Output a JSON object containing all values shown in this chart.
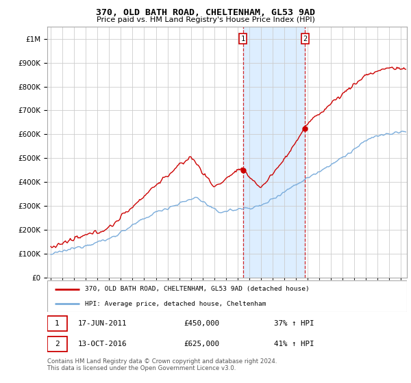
{
  "title": "370, OLD BATH ROAD, CHELTENHAM, GL53 9AD",
  "subtitle": "Price paid vs. HM Land Registry's House Price Index (HPI)",
  "legend_line1": "370, OLD BATH ROAD, CHELTENHAM, GL53 9AD (detached house)",
  "legend_line2": "HPI: Average price, detached house, Cheltenham",
  "annotation1_label": "1",
  "annotation1_date": "17-JUN-2011",
  "annotation1_price": "£450,000",
  "annotation1_hpi": "37% ↑ HPI",
  "annotation2_label": "2",
  "annotation2_date": "13-OCT-2016",
  "annotation2_price": "£625,000",
  "annotation2_hpi": "41% ↑ HPI",
  "footer": "Contains HM Land Registry data © Crown copyright and database right 2024.\nThis data is licensed under the Open Government Licence v3.0.",
  "red_color": "#cc0000",
  "blue_color": "#7aacdb",
  "shade_color": "#ddeeff",
  "annotation_box_color": "#cc0000",
  "background_color": "#ffffff",
  "plot_bg_color": "#ffffff",
  "grid_color": "#cccccc",
  "ylim": [
    0,
    1050000
  ],
  "xlim_start": 1994.7,
  "xlim_end": 2025.5,
  "sale1_x": 2011.46,
  "sale1_y": 450000,
  "sale2_x": 2016.78,
  "sale2_y": 625000
}
